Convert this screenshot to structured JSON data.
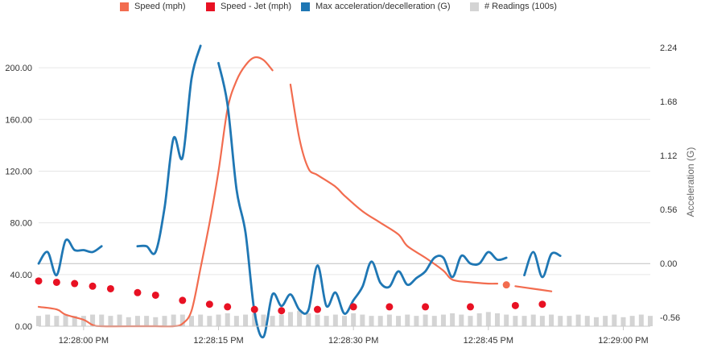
{
  "legend": {
    "speed": "Speed (mph)",
    "speed_jet": "Speed - Jet (mph)",
    "max_accel": "Max acceleration/decelleration (G)",
    "readings": "# Readings (100s)"
  },
  "colors": {
    "speed": "#f26c4f",
    "speed_jet": "#e81123",
    "max_accel": "#1f77b4",
    "readings": "#d4d4d4",
    "grid": "#e6e6e6"
  },
  "chart_data": {
    "type": "line",
    "x_axis": {
      "type": "time",
      "range": [
        "12:27:55 PM",
        "12:29:03 PM"
      ],
      "tick_labels": [
        "12:28:00 PM",
        "12:28:15 PM",
        "12:28:30 PM",
        "12:28:45 PM",
        "12:29:00 PM"
      ]
    },
    "y_left": {
      "ylim": [
        0,
        220
      ],
      "tick_labels": [
        "0.00",
        "40.00",
        "80.00",
        "120.00",
        "160.00",
        "200.00"
      ]
    },
    "y_right": {
      "label": "Acceleration (G)",
      "ylim": [
        -0.65,
        2.3
      ],
      "tick_labels": [
        "-0.56",
        "0.00",
        "0.56",
        "1.12",
        "1.68",
        "2.24"
      ]
    },
    "legend_position": "top",
    "series": [
      {
        "name": "Speed (mph)",
        "axis": "left",
        "points": [
          [
            "12:27:55 PM",
            15
          ],
          [
            "12:27:57 PM",
            13
          ],
          [
            "12:27:58 PM",
            9
          ],
          [
            "12:28:00 PM",
            5
          ],
          [
            "12:28:01 PM",
            1
          ],
          [
            "12:28:02 PM",
            0
          ],
          [
            "12:28:06 PM",
            0
          ],
          [
            "12:28:08 PM",
            0
          ],
          [
            "12:28:10 PM",
            0
          ],
          [
            "12:28:11 PM",
            2
          ],
          [
            "12:28:12 PM",
            12
          ],
          [
            "12:28:13 PM",
            45
          ],
          [
            "12:28:14 PM",
            80
          ],
          [
            "12:28:15 PM",
            120
          ],
          [
            "12:28:16 PM",
            168
          ],
          [
            "12:28:17 PM",
            190
          ],
          [
            "12:28:18 PM",
            202
          ],
          [
            "12:28:19 PM",
            208
          ],
          [
            "12:28:20 PM",
            206
          ],
          [
            "12:28:21 PM",
            198
          ],
          null,
          [
            "12:28:23 PM",
            187
          ],
          [
            "12:28:24 PM",
            145
          ],
          [
            "12:28:25 PM",
            122
          ],
          [
            "12:28:26 PM",
            117
          ],
          [
            "12:28:28 PM",
            108
          ],
          [
            "12:28:29 PM",
            101
          ],
          [
            "12:28:31 PM",
            89
          ],
          [
            "12:28:33 PM",
            80
          ],
          [
            "12:28:35 PM",
            71
          ],
          [
            "12:28:36 PM",
            62
          ],
          [
            "12:28:38 PM",
            53
          ],
          [
            "12:28:40 PM",
            43
          ],
          [
            "12:28:41 PM",
            36
          ],
          [
            "12:28:43 PM",
            34
          ],
          [
            "12:28:45 PM",
            33
          ],
          [
            "12:28:46 PM",
            33
          ],
          null,
          [
            "12:28:48 PM",
            31
          ],
          [
            "12:28:50 PM",
            29
          ],
          [
            "12:28:52 PM",
            27
          ]
        ],
        "marker": [
          "12:28:47 PM",
          32
        ]
      },
      {
        "name": "Speed - Jet (mph)",
        "axis": "left",
        "style": "dots",
        "points": [
          [
            "12:27:55 PM",
            35
          ],
          [
            "12:27:57 PM",
            34
          ],
          [
            "12:27:59 PM",
            33
          ],
          [
            "12:28:01 PM",
            31
          ],
          [
            "12:28:03 PM",
            29
          ],
          [
            "12:28:06 PM",
            26
          ],
          [
            "12:28:08 PM",
            24
          ],
          [
            "12:28:11 PM",
            20
          ],
          [
            "12:28:14 PM",
            17
          ],
          [
            "12:28:16 PM",
            15
          ],
          [
            "12:28:19 PM",
            13
          ],
          [
            "12:28:22 PM",
            12
          ],
          [
            "12:28:26 PM",
            13
          ],
          [
            "12:28:30 PM",
            15
          ],
          [
            "12:28:34 PM",
            15
          ],
          [
            "12:28:38 PM",
            15
          ],
          [
            "12:28:43 PM",
            15
          ],
          [
            "12:28:48 PM",
            16
          ],
          [
            "12:28:51 PM",
            17
          ]
        ]
      },
      {
        "name": "Max acceleration/decelleration (G)",
        "axis": "right",
        "points": [
          [
            "12:27:55 PM",
            0.0
          ],
          [
            "12:27:56 PM",
            0.12
          ],
          [
            "12:27:57 PM",
            -0.12
          ],
          [
            "12:27:58 PM",
            0.24
          ],
          [
            "12:27:59 PM",
            0.14
          ],
          [
            "12:28:00 PM",
            0.14
          ],
          [
            "12:28:01 PM",
            0.12
          ],
          [
            "12:28:02 PM",
            0.18
          ],
          null,
          [
            "12:28:06 PM",
            0.18
          ],
          [
            "12:28:07 PM",
            0.18
          ],
          [
            "12:28:08 PM",
            0.12
          ],
          [
            "12:28:09 PM",
            0.58
          ],
          [
            "12:28:10 PM",
            1.3
          ],
          [
            "12:28:11 PM",
            1.1
          ],
          [
            "12:28:12 PM",
            1.92
          ],
          [
            "12:28:13 PM",
            2.26
          ],
          null,
          [
            "12:28:15 PM",
            2.08
          ],
          [
            "12:28:16 PM",
            1.65
          ],
          [
            "12:28:17 PM",
            0.77
          ],
          [
            "12:28:18 PM",
            0.32
          ],
          [
            "12:28:19 PM",
            -0.5
          ],
          [
            "12:28:20 PM",
            -0.76
          ],
          [
            "12:28:21 PM",
            -0.32
          ],
          [
            "12:28:22 PM",
            -0.44
          ],
          [
            "12:28:23 PM",
            -0.32
          ],
          [
            "12:28:24 PM",
            -0.48
          ],
          [
            "12:28:25 PM",
            -0.48
          ],
          [
            "12:28:26 PM",
            -0.02
          ],
          [
            "12:28:27 PM",
            -0.44
          ],
          [
            "12:28:28 PM",
            -0.3
          ],
          [
            "12:28:29 PM",
            -0.52
          ],
          [
            "12:28:30 PM",
            -0.38
          ],
          [
            "12:28:31 PM",
            -0.24
          ],
          [
            "12:28:32 PM",
            0.02
          ],
          [
            "12:28:33 PM",
            -0.2
          ],
          [
            "12:28:34 PM",
            -0.24
          ],
          [
            "12:28:35 PM",
            -0.08
          ],
          [
            "12:28:36 PM",
            -0.22
          ],
          [
            "12:28:37 PM",
            -0.15
          ],
          [
            "12:28:38 PM",
            -0.08
          ],
          [
            "12:28:39 PM",
            0.06
          ],
          [
            "12:28:40 PM",
            0.06
          ],
          [
            "12:28:41 PM",
            -0.14
          ],
          [
            "12:28:42 PM",
            0.08
          ],
          [
            "12:28:43 PM",
            0.0
          ],
          [
            "12:28:44 PM",
            0.0
          ],
          [
            "12:28:45 PM",
            0.12
          ],
          [
            "12:28:46 PM",
            0.04
          ],
          [
            "12:28:47 PM",
            0.06
          ],
          null,
          [
            "12:28:49 PM",
            -0.12
          ],
          [
            "12:28:50 PM",
            0.12
          ],
          [
            "12:28:51 PM",
            -0.14
          ],
          [
            "12:28:52 PM",
            0.1
          ],
          [
            "12:28:53 PM",
            0.08
          ]
        ]
      },
      {
        "name": "# Readings (100s)",
        "axis": "left",
        "style": "bars",
        "points": [
          [
            "12:27:55 PM",
            8
          ],
          [
            "12:27:56 PM",
            9
          ],
          [
            "12:27:57 PM",
            8
          ],
          [
            "12:27:58 PM",
            9
          ],
          [
            "12:27:59 PM",
            8
          ],
          [
            "12:28:00 PM",
            8
          ],
          [
            "12:28:01 PM",
            9
          ],
          [
            "12:28:02 PM",
            9
          ],
          [
            "12:28:03 PM",
            8
          ],
          [
            "12:28:04 PM",
            9
          ],
          [
            "12:28:05 PM",
            7
          ],
          [
            "12:28:06 PM",
            8
          ],
          [
            "12:28:07 PM",
            8
          ],
          [
            "12:28:08 PM",
            7
          ],
          [
            "12:28:09 PM",
            8
          ],
          [
            "12:28:10 PM",
            9
          ],
          [
            "12:28:11 PM",
            9
          ],
          [
            "12:28:12 PM",
            8
          ],
          [
            "12:28:13 PM",
            9
          ],
          [
            "12:28:14 PM",
            8
          ],
          [
            "12:28:15 PM",
            9
          ],
          [
            "12:28:16 PM",
            10
          ],
          [
            "12:28:17 PM",
            8
          ],
          [
            "12:28:18 PM",
            9
          ],
          [
            "12:28:19 PM",
            10
          ],
          [
            "12:28:20 PM",
            9
          ],
          [
            "12:28:21 PM",
            8
          ],
          [
            "12:28:22 PM",
            9
          ],
          [
            "12:28:23 PM",
            11
          ],
          [
            "12:28:24 PM",
            12
          ],
          [
            "12:28:25 PM",
            10
          ],
          [
            "12:28:26 PM",
            9
          ],
          [
            "12:28:27 PM",
            8
          ],
          [
            "12:28:28 PM",
            9
          ],
          [
            "12:28:29 PM",
            8
          ],
          [
            "12:28:30 PM",
            10
          ],
          [
            "12:28:31 PM",
            9
          ],
          [
            "12:28:32 PM",
            8
          ],
          [
            "12:28:33 PM",
            8
          ],
          [
            "12:28:34 PM",
            9
          ],
          [
            "12:28:35 PM",
            8
          ],
          [
            "12:28:36 PM",
            9
          ],
          [
            "12:28:37 PM",
            8
          ],
          [
            "12:28:38 PM",
            9
          ],
          [
            "12:28:39 PM",
            8
          ],
          [
            "12:28:40 PM",
            9
          ],
          [
            "12:28:41 PM",
            10
          ],
          [
            "12:28:42 PM",
            9
          ],
          [
            "12:28:43 PM",
            8
          ],
          [
            "12:28:44 PM",
            10
          ],
          [
            "12:28:45 PM",
            11
          ],
          [
            "12:28:46 PM",
            10
          ],
          [
            "12:28:47 PM",
            9
          ],
          [
            "12:28:48 PM",
            8
          ],
          [
            "12:28:49 PM",
            8
          ],
          [
            "12:28:50 PM",
            9
          ],
          [
            "12:28:51 PM",
            8
          ],
          [
            "12:28:52 PM",
            9
          ],
          [
            "12:28:53 PM",
            8
          ],
          [
            "12:28:54 PM",
            8
          ],
          [
            "12:28:55 PM",
            9
          ],
          [
            "12:28:56 PM",
            8
          ],
          [
            "12:28:57 PM",
            7
          ],
          [
            "12:28:58 PM",
            8
          ],
          [
            "12:28:59 PM",
            9
          ],
          [
            "12:29:00 PM",
            7
          ],
          [
            "12:29:01 PM",
            8
          ],
          [
            "12:29:02 PM",
            9
          ],
          [
            "12:29:03 PM",
            8
          ]
        ]
      }
    ]
  }
}
